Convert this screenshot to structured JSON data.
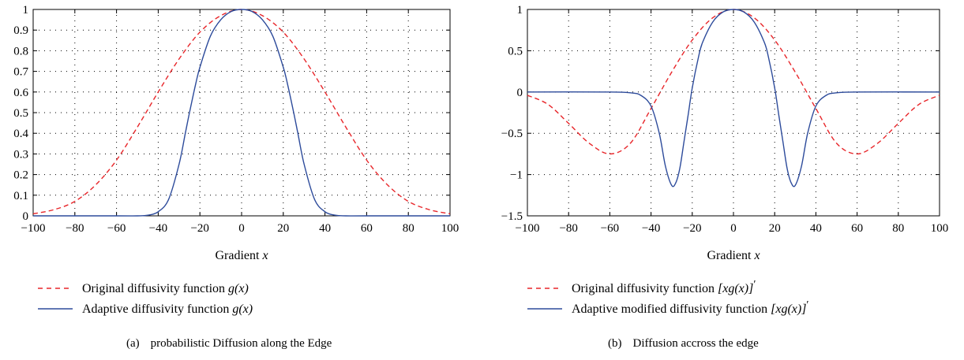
{
  "panels": [
    {
      "caption": {
        "label": "(a)",
        "text": "probabilistic Diffusion along the Edge"
      },
      "xlabel_text": "Gradient",
      "xlabel_var": "x",
      "legend": [
        {
          "text": "Original diffusivity function ",
          "math": "g(x)",
          "prime": "",
          "color": "#e8262a",
          "dash": "6,5"
        },
        {
          "text": "Adaptive diffusivity function ",
          "math": "g(x)",
          "prime": "",
          "color": "#2d4b9b",
          "dash": ""
        }
      ]
    },
    {
      "caption": {
        "label": "(b)",
        "text": "Diffusion accross the edge"
      },
      "xlabel_text": "Gradient",
      "xlabel_var": "x",
      "legend": [
        {
          "text": "Original diffusivity function ",
          "math": "[xg(x)]",
          "prime": "′",
          "color": "#e8262a",
          "dash": "6,5"
        },
        {
          "text": "Adaptive modified diffusivity function ",
          "math": "[xg(x)]",
          "prime": "′",
          "color": "#2d4b9b",
          "dash": ""
        }
      ]
    }
  ],
  "chart_data": [
    {
      "type": "line",
      "title": "",
      "xlabel": "Gradient x",
      "ylabel": "",
      "xlim": [
        -100,
        100
      ],
      "ylim": [
        0,
        1
      ],
      "xticks": [
        "−100",
        "−80",
        "−60",
        "−40",
        "−20",
        "0",
        "20",
        "40",
        "60",
        "80",
        "100"
      ],
      "yticks": [
        "0",
        "0.1",
        "0.2",
        "0.3",
        "0.4",
        "0.5",
        "0.6",
        "0.7",
        "0.8",
        "0.9",
        "1"
      ],
      "grid": true,
      "series": [
        {
          "name": "Original diffusivity function g(x)",
          "color": "#e8262a",
          "style": "dashed",
          "x": [
            -100,
            -90,
            -80,
            -70,
            -60,
            -50,
            -40,
            -30,
            -20,
            -10,
            0,
            10,
            20,
            30,
            40,
            50,
            60,
            70,
            80,
            90,
            100
          ],
          "y": [
            0.01,
            0.03,
            0.07,
            0.15,
            0.27,
            0.43,
            0.6,
            0.76,
            0.89,
            0.97,
            1.0,
            0.97,
            0.89,
            0.76,
            0.6,
            0.43,
            0.27,
            0.15,
            0.07,
            0.03,
            0.01
          ]
        },
        {
          "name": "Adaptive diffusivity function g(x)",
          "color": "#2d4b9b",
          "style": "solid",
          "x": [
            -100,
            -60,
            -50,
            -45,
            -40,
            -35,
            -30,
            -27,
            -25,
            -22,
            -20,
            -15,
            -10,
            -5,
            0,
            5,
            10,
            15,
            20,
            22,
            25,
            27,
            30,
            35,
            40,
            45,
            50,
            60,
            100
          ],
          "y": [
            0,
            0,
            0,
            0.003,
            0.02,
            0.08,
            0.25,
            0.4,
            0.5,
            0.64,
            0.72,
            0.87,
            0.95,
            0.99,
            1.0,
            0.99,
            0.95,
            0.87,
            0.72,
            0.64,
            0.5,
            0.4,
            0.25,
            0.08,
            0.02,
            0.003,
            0,
            0,
            0
          ]
        }
      ]
    },
    {
      "type": "line",
      "title": "",
      "xlabel": "Gradient x",
      "ylabel": "",
      "xlim": [
        -100,
        100
      ],
      "ylim": [
        -1.5,
        1
      ],
      "xticks": [
        "−100",
        "−80",
        "−60",
        "−40",
        "−20",
        "0",
        "20",
        "40",
        "60",
        "80",
        "100"
      ],
      "yticks": [
        "−1.5",
        "−1",
        "−0.5",
        "0",
        "0.5",
        "1"
      ],
      "grid": true,
      "series": [
        {
          "name": "Original diffusivity function [xg(x)]′",
          "color": "#e8262a",
          "style": "dashed",
          "x": [
            -100,
            -90,
            -80,
            -70,
            -60,
            -50,
            -40,
            -30,
            -20,
            -10,
            0,
            10,
            20,
            30,
            40,
            50,
            60,
            70,
            80,
            90,
            100
          ],
          "y": [
            -0.04,
            -0.15,
            -0.38,
            -0.62,
            -0.75,
            -0.62,
            -0.2,
            0.24,
            0.63,
            0.9,
            1.0,
            0.9,
            0.63,
            0.24,
            -0.2,
            -0.62,
            -0.75,
            -0.62,
            -0.38,
            -0.15,
            -0.04
          ]
        },
        {
          "name": "Adaptive modified diffusivity function [xg(x)]′",
          "color": "#2d4b9b",
          "style": "solid",
          "x": [
            -100,
            -60,
            -50,
            -45,
            -40,
            -36,
            -33,
            -30,
            -28,
            -26,
            -24,
            -22,
            -20,
            -17,
            -15,
            -10,
            -5,
            0,
            5,
            10,
            15,
            17,
            20,
            22,
            24,
            26,
            28,
            30,
            33,
            36,
            40,
            45,
            50,
            60,
            100
          ],
          "y": [
            0,
            0,
            -0.01,
            -0.04,
            -0.17,
            -0.5,
            -0.9,
            -1.13,
            -1.1,
            -0.92,
            -0.6,
            -0.28,
            0.05,
            0.42,
            0.6,
            0.85,
            0.97,
            1.0,
            0.97,
            0.85,
            0.6,
            0.42,
            0.05,
            -0.28,
            -0.6,
            -0.92,
            -1.1,
            -1.13,
            -0.9,
            -0.5,
            -0.17,
            -0.04,
            -0.01,
            0,
            0
          ]
        }
      ]
    }
  ]
}
